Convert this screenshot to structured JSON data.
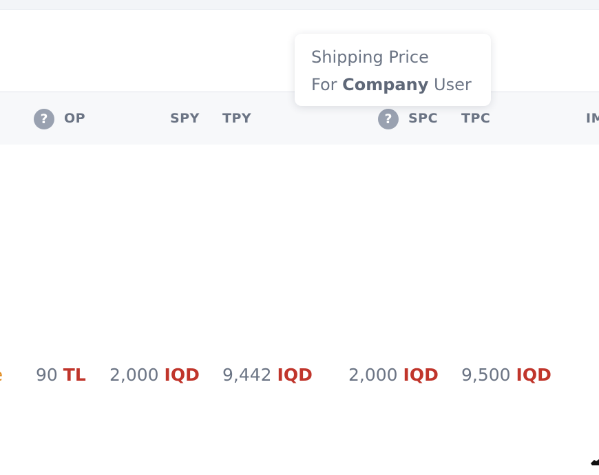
{
  "tooltip": {
    "line1": "Shipping Price",
    "line2_prefix": "For",
    "line2_bold": "Company",
    "line2_suffix": "User"
  },
  "table": {
    "help_icon_glyph": "?",
    "headers": {
      "op": "OP",
      "spy": "SPY",
      "tpy": "TPY",
      "spc": "SPC",
      "tpc": "TPC",
      "cut_off": "IM"
    },
    "row": {
      "clipped_text": "e",
      "op_value": "90",
      "op_currency": "TL",
      "spy_value": "2,000",
      "spy_currency": "IQD",
      "tpy_value": "9,442",
      "tpy_currency": "IQD",
      "spc_value": "2,000",
      "spc_currency": "IQD",
      "tpc_value": "9,500",
      "tpc_currency": "IQD"
    }
  },
  "colors": {
    "currency": "#c0352b",
    "header_text": "#6b7484",
    "help_icon": "#99a1b0",
    "clipped_accent": "#e08a1e"
  }
}
